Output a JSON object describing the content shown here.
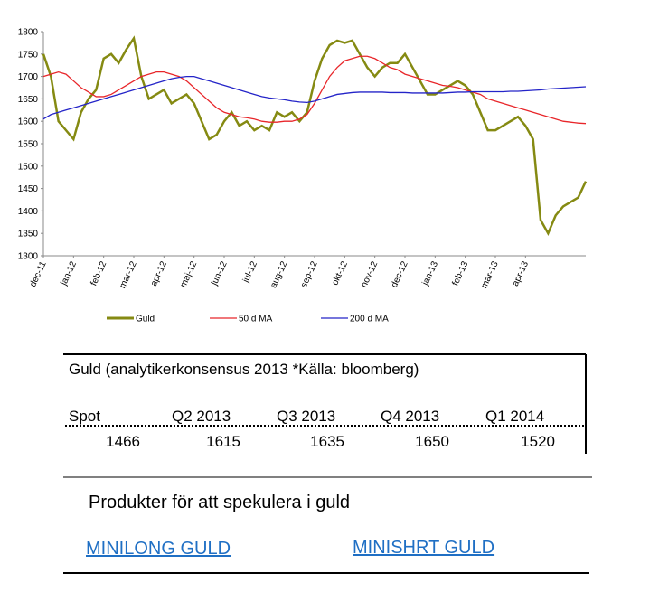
{
  "chart_data": {
    "type": "line",
    "categories": [
      "dec-11",
      null,
      null,
      null,
      "jan-12",
      null,
      null,
      null,
      "feb-12",
      null,
      null,
      null,
      "mar-12",
      null,
      null,
      null,
      "apr-12",
      null,
      null,
      null,
      "maj-12",
      null,
      null,
      null,
      "jun-12",
      null,
      null,
      null,
      "jul-12",
      null,
      null,
      null,
      "aug-12",
      null,
      null,
      null,
      "sep-12",
      null,
      null,
      null,
      "okt-12",
      null,
      null,
      null,
      "nov-12",
      null,
      null,
      null,
      "dec-12",
      null,
      null,
      null,
      "jan-13",
      null,
      null,
      null,
      "feb-13",
      null,
      null,
      null,
      "mar-13",
      null,
      null,
      null,
      "apr-13",
      null,
      null,
      null,
      null,
      null,
      null,
      null,
      null
    ],
    "series": [
      {
        "name": "Guld",
        "color": "#858a12",
        "values": [
          1750,
          1700,
          1600,
          1580,
          1560,
          1620,
          1650,
          1670,
          1740,
          1750,
          1730,
          1760,
          1785,
          1700,
          1650,
          1660,
          1670,
          1640,
          1650,
          1660,
          1640,
          1600,
          1560,
          1570,
          1600,
          1620,
          1590,
          1600,
          1580,
          1590,
          1580,
          1620,
          1610,
          1620,
          1600,
          1620,
          1690,
          1740,
          1770,
          1780,
          1775,
          1780,
          1750,
          1720,
          1700,
          1720,
          1730,
          1730,
          1750,
          1720,
          1690,
          1660,
          1660,
          1670,
          1680,
          1690,
          1680,
          1660,
          1620,
          1580,
          1580,
          1590,
          1600,
          1610,
          1590,
          1560,
          1380,
          1350,
          1390,
          1410,
          1420,
          1430,
          1466
        ]
      },
      {
        "name": "50 d MA",
        "color": "#e8262a",
        "values": [
          1700,
          1705,
          1710,
          1705,
          1690,
          1675,
          1665,
          1655,
          1655,
          1660,
          1670,
          1680,
          1690,
          1700,
          1705,
          1710,
          1710,
          1705,
          1700,
          1690,
          1675,
          1660,
          1645,
          1630,
          1620,
          1615,
          1610,
          1608,
          1605,
          1600,
          1598,
          1598,
          1600,
          1600,
          1605,
          1615,
          1640,
          1670,
          1700,
          1720,
          1735,
          1740,
          1745,
          1745,
          1740,
          1730,
          1720,
          1715,
          1705,
          1700,
          1695,
          1690,
          1685,
          1680,
          1678,
          1675,
          1670,
          1665,
          1660,
          1650,
          1645,
          1640,
          1635,
          1630,
          1625,
          1620,
          1615,
          1610,
          1605,
          1600,
          1598,
          1596,
          1595
        ]
      },
      {
        "name": "200 d MA",
        "color": "#2424c8",
        "values": [
          1605,
          1615,
          1620,
          1625,
          1630,
          1635,
          1640,
          1645,
          1650,
          1655,
          1660,
          1665,
          1670,
          1675,
          1680,
          1685,
          1690,
          1695,
          1698,
          1700,
          1700,
          1695,
          1690,
          1685,
          1680,
          1675,
          1670,
          1665,
          1660,
          1655,
          1652,
          1650,
          1648,
          1645,
          1643,
          1642,
          1645,
          1650,
          1655,
          1660,
          1662,
          1664,
          1665,
          1665,
          1665,
          1665,
          1664,
          1664,
          1664,
          1663,
          1663,
          1663,
          1663,
          1663,
          1664,
          1665,
          1665,
          1666,
          1666,
          1666,
          1666,
          1666,
          1667,
          1667,
          1668,
          1669,
          1670,
          1672,
          1673,
          1674,
          1675,
          1676,
          1677
        ]
      }
    ],
    "ylim": [
      1300,
      1800
    ],
    "yticks": [
      1300,
      1350,
      1400,
      1450,
      1500,
      1550,
      1600,
      1650,
      1700,
      1750,
      1800
    ],
    "grid": false,
    "legend": "bottom"
  },
  "table": {
    "title": "Guld (analytikerkonsensus 2013 *Källa: bloomberg)",
    "columns": [
      "Spot",
      "Q2 2013",
      "Q3 2013",
      "Q4 2013",
      "Q1 2014"
    ],
    "rows": [
      [
        "1466",
        "1615",
        "1635",
        "1650",
        "1520"
      ]
    ]
  },
  "products": {
    "heading": "Produkter för att spekulera i guld",
    "links": [
      "MINILONG GULD",
      "MINISHRT GULD"
    ]
  }
}
